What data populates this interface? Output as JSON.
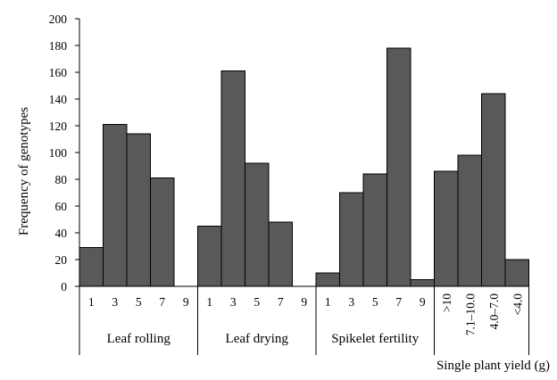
{
  "chart_data": {
    "type": "bar",
    "ylabel": "Frequency of genotypes",
    "xlabel": "Single plant yield (g)",
    "ylim": [
      0,
      200
    ],
    "yticks": [
      0,
      20,
      40,
      60,
      80,
      100,
      120,
      140,
      160,
      180,
      200
    ],
    "bar_color": "#595959",
    "groups": [
      {
        "name": "Leaf rolling",
        "categories": [
          "1",
          "3",
          "5",
          "7",
          "9"
        ],
        "values": [
          29,
          121,
          114,
          81,
          0
        ]
      },
      {
        "name": "Leaf drying",
        "categories": [
          "1",
          "3",
          "5",
          "7",
          "9"
        ],
        "values": [
          45,
          161,
          92,
          48,
          0
        ]
      },
      {
        "name": "Spikelet fertility",
        "categories": [
          "1",
          "3",
          "5",
          "7",
          "9"
        ],
        "values": [
          10,
          70,
          84,
          178,
          5
        ]
      },
      {
        "name": "",
        "categories": [
          ">10",
          "7.1–10.0",
          "4.0–7.0",
          "<4.0"
        ],
        "values": [
          86,
          98,
          144,
          20
        ]
      }
    ]
  }
}
